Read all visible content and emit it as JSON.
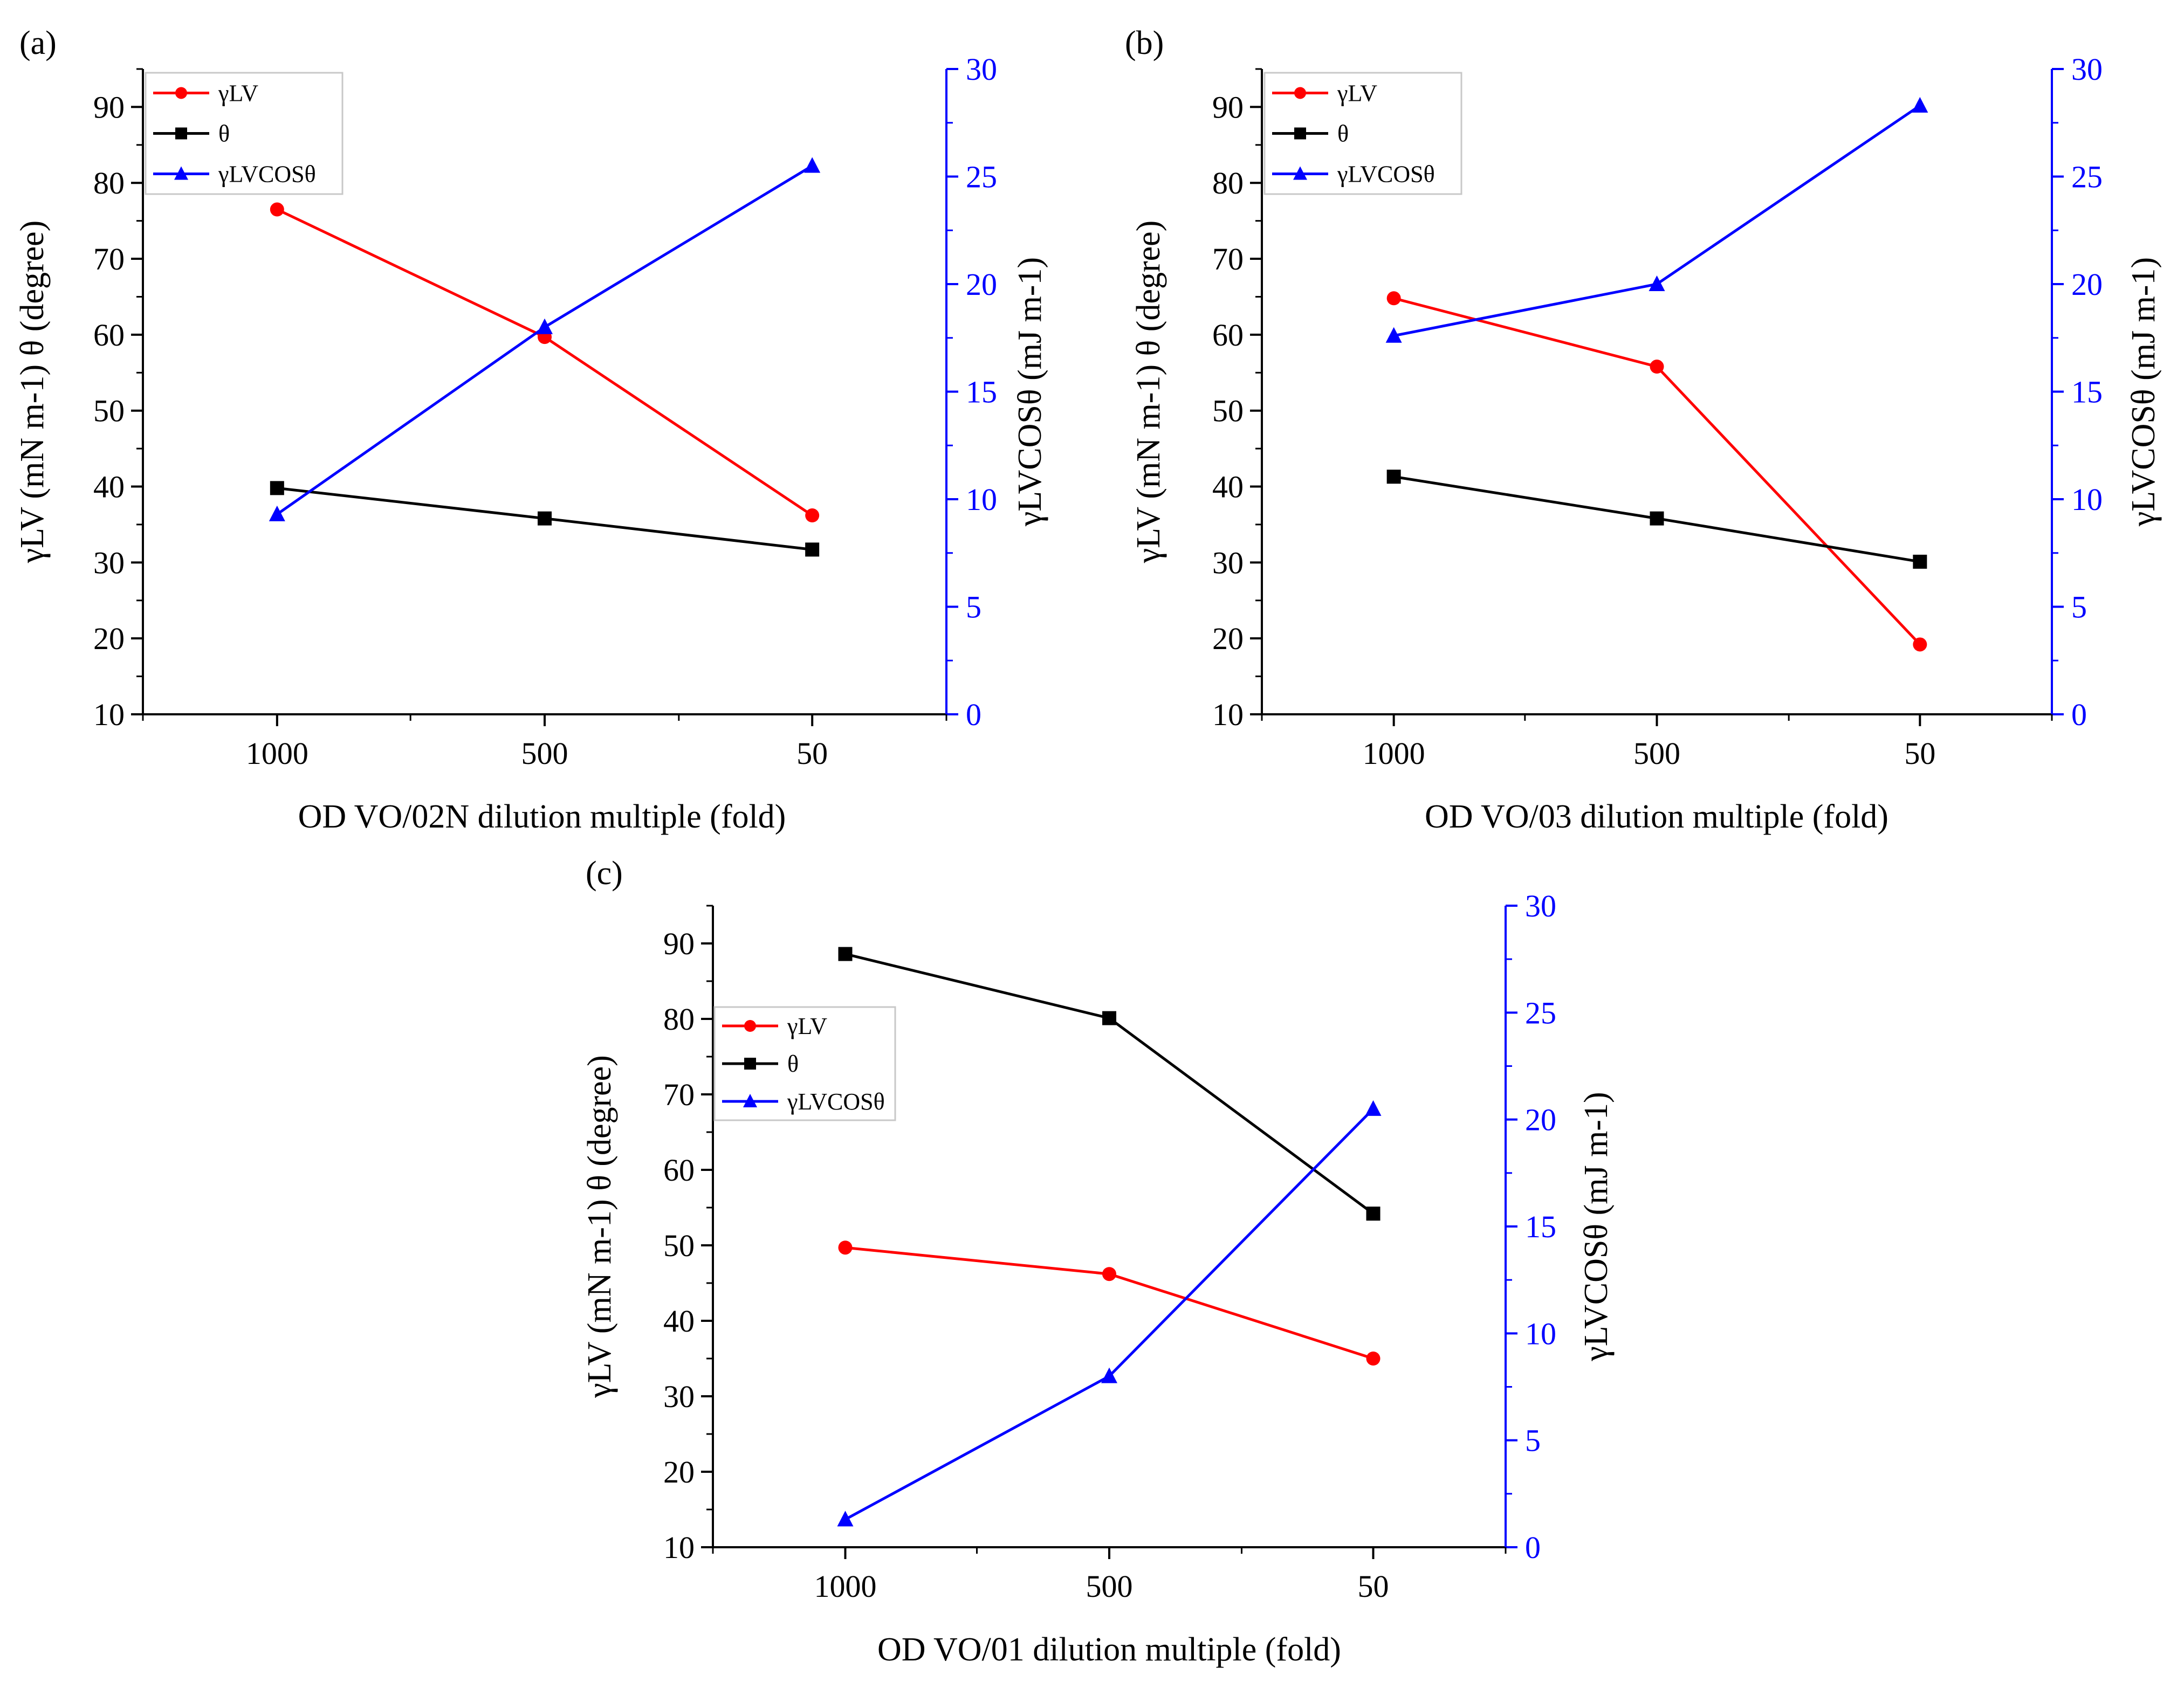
{
  "chart_data": [
    {
      "panel": "(a)",
      "type": "line",
      "categories": [
        "1000",
        "500",
        "50"
      ],
      "xlabel": "OD VO/02N dilution multiple (fold)",
      "ylabel_left": "γLV (mN m-1) θ (degree)",
      "ylabel_right": "γLVCOSθ (mJ m-1)",
      "ylim_left": [
        10,
        95
      ],
      "yticks_left": [
        10,
        20,
        30,
        40,
        50,
        60,
        70,
        80,
        90
      ],
      "ylim_right": [
        0,
        30
      ],
      "yticks_right": [
        0,
        5,
        10,
        15,
        20,
        25,
        30
      ],
      "legend_position": "top-left",
      "series": [
        {
          "name": "γLV",
          "axis": "left",
          "color": "#ff0000",
          "marker": "circle",
          "values": [
            76.5,
            59.7,
            36.2
          ]
        },
        {
          "name": "θ",
          "axis": "left",
          "color": "#000000",
          "marker": "square",
          "values": [
            39.8,
            35.8,
            31.7
          ]
        },
        {
          "name": "γLVCOSθ",
          "axis": "right",
          "color": "#0000ff",
          "marker": "triangle",
          "values": [
            9.3,
            18.0,
            25.5
          ]
        }
      ]
    },
    {
      "panel": "(b)",
      "type": "line",
      "categories": [
        "1000",
        "500",
        "50"
      ],
      "xlabel": "OD VO/03 dilution multiple (fold)",
      "ylabel_left": "γLV (mN m-1) θ (degree)",
      "ylabel_right": "γLVCOSθ (mJ m-1)",
      "ylim_left": [
        10,
        95
      ],
      "yticks_left": [
        10,
        20,
        30,
        40,
        50,
        60,
        70,
        80,
        90
      ],
      "ylim_right": [
        0,
        30
      ],
      "yticks_right": [
        0,
        5,
        10,
        15,
        20,
        25,
        30
      ],
      "legend_position": "top-left",
      "series": [
        {
          "name": "γLV",
          "axis": "left",
          "color": "#ff0000",
          "marker": "circle",
          "values": [
            64.8,
            55.8,
            19.2
          ]
        },
        {
          "name": "θ",
          "axis": "left",
          "color": "#000000",
          "marker": "square",
          "values": [
            41.3,
            35.8,
            30.1
          ]
        },
        {
          "name": "γLVCOSθ",
          "axis": "right",
          "color": "#0000ff",
          "marker": "triangle",
          "values": [
            17.6,
            20.0,
            28.3
          ]
        }
      ]
    },
    {
      "panel": "(c)",
      "type": "line",
      "categories": [
        "1000",
        "500",
        "50"
      ],
      "xlabel": "OD VO/01 dilution multiple (fold)",
      "ylabel_left": "γLV (mN m-1) θ (degree)",
      "ylabel_right": "γLVCOSθ (mJ m-1)",
      "ylim_left": [
        10,
        95
      ],
      "yticks_left": [
        10,
        20,
        30,
        40,
        50,
        60,
        70,
        80,
        90
      ],
      "ylim_right": [
        0,
        30
      ],
      "yticks_right": [
        0,
        5,
        10,
        15,
        20,
        25,
        30
      ],
      "legend_position": "middle-left",
      "series": [
        {
          "name": "γLV",
          "axis": "left",
          "color": "#ff0000",
          "marker": "circle",
          "values": [
            49.7,
            46.2,
            35.0
          ]
        },
        {
          "name": "θ",
          "axis": "left",
          "color": "#000000",
          "marker": "square",
          "values": [
            88.6,
            80.1,
            54.2
          ]
        },
        {
          "name": "γLVCOSθ",
          "axis": "right",
          "color": "#0000ff",
          "marker": "triangle",
          "values": [
            1.3,
            8.0,
            20.5
          ]
        }
      ]
    }
  ]
}
